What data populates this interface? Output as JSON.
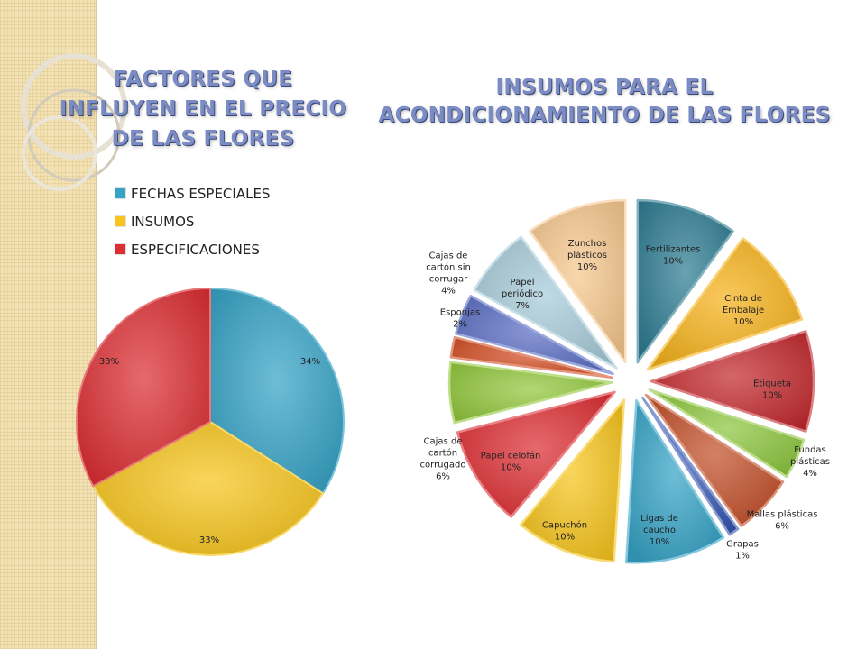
{
  "chart_data": [
    {
      "type": "pie",
      "title": "FACTORES QUE INFLUYEN EN EL PRECIO DE LAS FLORES",
      "title_lines": [
        "FACTORES QUE",
        "INFLUYEN EN EL PRECIO",
        "DE LAS FLORES"
      ],
      "legend_position": "top-left",
      "categories": [
        "FECHAS ESPECIALES",
        "INSUMOS",
        "ESPECIFICACIONES"
      ],
      "values": [
        34,
        33,
        33
      ],
      "data_labels": [
        "34%",
        "33%",
        "33%"
      ],
      "colors": [
        "#36a4c6",
        "#f7c51c",
        "#dc2f33"
      ]
    },
    {
      "type": "pie",
      "exploded": true,
      "title": "INSUMOS PARA EL ACONDICIONAMIENTO DE LAS FLORES",
      "title_lines": [
        "INSUMOS PARA EL",
        "ACONDICIONAMIENTO DE LAS FLORES"
      ],
      "categories": [
        "Fertilizantes",
        "Cinta de Embalaje",
        "Etiqueta",
        "Fundas plásticas",
        "Mallas plásticas",
        "Grapas",
        "Ligas de caucho",
        "Capuchón",
        "Papel celofán",
        "Cajas de cartón corrugado",
        "Esponjas",
        "Cajas de cartón sin corrugar",
        "Papel periódico",
        "Zunchos plásticos"
      ],
      "values": [
        10,
        10,
        10,
        4,
        6,
        1,
        10,
        10,
        10,
        6,
        2,
        4,
        7,
        10
      ],
      "label_lines": [
        [
          "Fertilizantes",
          "10%"
        ],
        [
          "Cinta de",
          "Embalaje",
          "10%"
        ],
        [
          "Etiqueta",
          "10%"
        ],
        [
          "Fundas",
          "plásticas",
          "4%"
        ],
        [
          "Mallas plásticas",
          "6%"
        ],
        [
          "Grapas",
          "1%"
        ],
        [
          "Ligas de",
          "caucho",
          "10%"
        ],
        [
          "Capuchón",
          "10%"
        ],
        [
          "Papel celofán",
          "10%"
        ],
        [
          "Cajas de",
          "cartón",
          "corrugado",
          "6%"
        ],
        [
          "Esponjas",
          "2%"
        ],
        [
          "Cajas de",
          "cartón sin",
          "corrugar",
          "4%"
        ],
        [
          "Papel",
          "periódico",
          "7%"
        ],
        [
          "Zunchos",
          "plásticos",
          "10%"
        ]
      ],
      "colors": [
        "#2f7d93",
        "#f7b31c",
        "#c32a2f",
        "#8dc63f",
        "#c2502a",
        "#3859b3",
        "#36a4c6",
        "#f7c51c",
        "#dc2f33",
        "#93c83d",
        "#d24e25",
        "#5c6fc4",
        "#a8cbd9",
        "#f6c88e"
      ]
    }
  ]
}
